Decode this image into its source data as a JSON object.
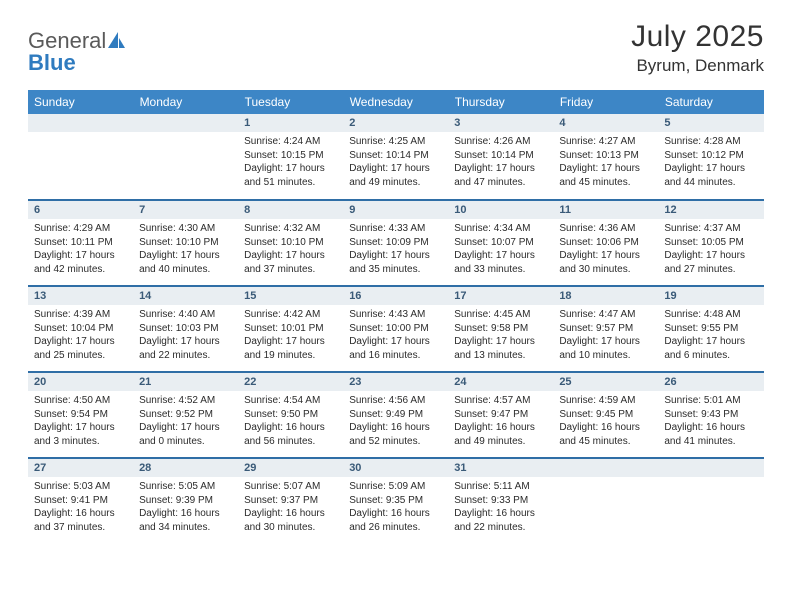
{
  "logo": {
    "general": "General",
    "blue": "Blue"
  },
  "title": "July 2025",
  "location": "Byrum, Denmark",
  "colors": {
    "header_bg": "#3d86c6",
    "header_text": "#ffffff",
    "daynum_bg": "#e9eef2",
    "daynum_text": "#3a5a78",
    "row_border": "#2f6ea6",
    "logo_blue": "#2f7bbf"
  },
  "weekdays": [
    "Sunday",
    "Monday",
    "Tuesday",
    "Wednesday",
    "Thursday",
    "Friday",
    "Saturday"
  ],
  "weeks": [
    [
      null,
      null,
      {
        "n": "1",
        "sr": "4:24 AM",
        "ss": "10:15 PM",
        "dl": "17 hours and 51 minutes."
      },
      {
        "n": "2",
        "sr": "4:25 AM",
        "ss": "10:14 PM",
        "dl": "17 hours and 49 minutes."
      },
      {
        "n": "3",
        "sr": "4:26 AM",
        "ss": "10:14 PM",
        "dl": "17 hours and 47 minutes."
      },
      {
        "n": "4",
        "sr": "4:27 AM",
        "ss": "10:13 PM",
        "dl": "17 hours and 45 minutes."
      },
      {
        "n": "5",
        "sr": "4:28 AM",
        "ss": "10:12 PM",
        "dl": "17 hours and 44 minutes."
      }
    ],
    [
      {
        "n": "6",
        "sr": "4:29 AM",
        "ss": "10:11 PM",
        "dl": "17 hours and 42 minutes."
      },
      {
        "n": "7",
        "sr": "4:30 AM",
        "ss": "10:10 PM",
        "dl": "17 hours and 40 minutes."
      },
      {
        "n": "8",
        "sr": "4:32 AM",
        "ss": "10:10 PM",
        "dl": "17 hours and 37 minutes."
      },
      {
        "n": "9",
        "sr": "4:33 AM",
        "ss": "10:09 PM",
        "dl": "17 hours and 35 minutes."
      },
      {
        "n": "10",
        "sr": "4:34 AM",
        "ss": "10:07 PM",
        "dl": "17 hours and 33 minutes."
      },
      {
        "n": "11",
        "sr": "4:36 AM",
        "ss": "10:06 PM",
        "dl": "17 hours and 30 minutes."
      },
      {
        "n": "12",
        "sr": "4:37 AM",
        "ss": "10:05 PM",
        "dl": "17 hours and 27 minutes."
      }
    ],
    [
      {
        "n": "13",
        "sr": "4:39 AM",
        "ss": "10:04 PM",
        "dl": "17 hours and 25 minutes."
      },
      {
        "n": "14",
        "sr": "4:40 AM",
        "ss": "10:03 PM",
        "dl": "17 hours and 22 minutes."
      },
      {
        "n": "15",
        "sr": "4:42 AM",
        "ss": "10:01 PM",
        "dl": "17 hours and 19 minutes."
      },
      {
        "n": "16",
        "sr": "4:43 AM",
        "ss": "10:00 PM",
        "dl": "17 hours and 16 minutes."
      },
      {
        "n": "17",
        "sr": "4:45 AM",
        "ss": "9:58 PM",
        "dl": "17 hours and 13 minutes."
      },
      {
        "n": "18",
        "sr": "4:47 AM",
        "ss": "9:57 PM",
        "dl": "17 hours and 10 minutes."
      },
      {
        "n": "19",
        "sr": "4:48 AM",
        "ss": "9:55 PM",
        "dl": "17 hours and 6 minutes."
      }
    ],
    [
      {
        "n": "20",
        "sr": "4:50 AM",
        "ss": "9:54 PM",
        "dl": "17 hours and 3 minutes."
      },
      {
        "n": "21",
        "sr": "4:52 AM",
        "ss": "9:52 PM",
        "dl": "17 hours and 0 minutes."
      },
      {
        "n": "22",
        "sr": "4:54 AM",
        "ss": "9:50 PM",
        "dl": "16 hours and 56 minutes."
      },
      {
        "n": "23",
        "sr": "4:56 AM",
        "ss": "9:49 PM",
        "dl": "16 hours and 52 minutes."
      },
      {
        "n": "24",
        "sr": "4:57 AM",
        "ss": "9:47 PM",
        "dl": "16 hours and 49 minutes."
      },
      {
        "n": "25",
        "sr": "4:59 AM",
        "ss": "9:45 PM",
        "dl": "16 hours and 45 minutes."
      },
      {
        "n": "26",
        "sr": "5:01 AM",
        "ss": "9:43 PM",
        "dl": "16 hours and 41 minutes."
      }
    ],
    [
      {
        "n": "27",
        "sr": "5:03 AM",
        "ss": "9:41 PM",
        "dl": "16 hours and 37 minutes."
      },
      {
        "n": "28",
        "sr": "5:05 AM",
        "ss": "9:39 PM",
        "dl": "16 hours and 34 minutes."
      },
      {
        "n": "29",
        "sr": "5:07 AM",
        "ss": "9:37 PM",
        "dl": "16 hours and 30 minutes."
      },
      {
        "n": "30",
        "sr": "5:09 AM",
        "ss": "9:35 PM",
        "dl": "16 hours and 26 minutes."
      },
      {
        "n": "31",
        "sr": "5:11 AM",
        "ss": "9:33 PM",
        "dl": "16 hours and 22 minutes."
      },
      null,
      null
    ]
  ],
  "labels": {
    "sunrise": "Sunrise:",
    "sunset": "Sunset:",
    "daylight": "Daylight:"
  }
}
